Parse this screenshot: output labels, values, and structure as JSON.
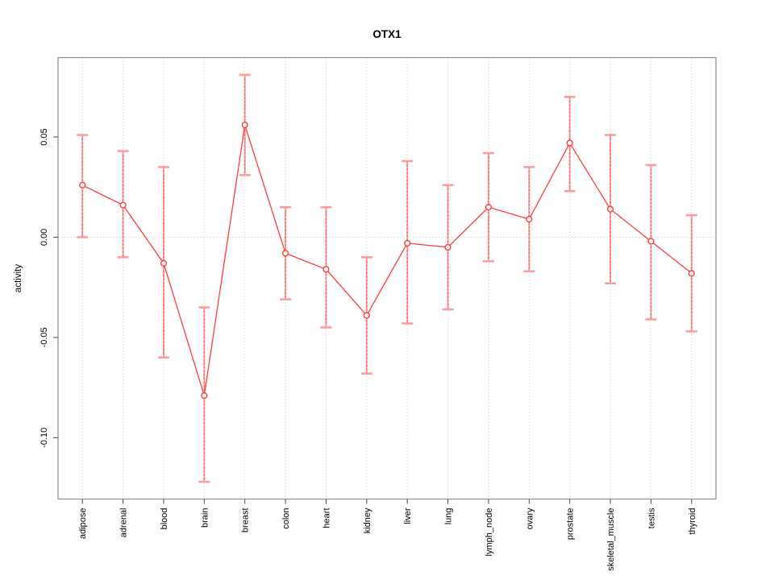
{
  "chart_data": {
    "type": "line",
    "title": "OTX1",
    "xlabel": "",
    "ylabel": "activity",
    "legend": "none",
    "grid": {
      "vertical": "per-category-dotted",
      "horizontal_at": 0.0
    },
    "marker": "open-circle",
    "categories": [
      "adipose",
      "adrenal",
      "blood",
      "brain",
      "breast",
      "colon",
      "heart",
      "kidney",
      "liver",
      "lung",
      "lymph_node",
      "ovary",
      "prostate",
      "skeletal_muscle",
      "testis",
      "thyroid"
    ],
    "series": [
      {
        "name": "activity",
        "values": [
          0.026,
          0.016,
          -0.013,
          -0.079,
          0.056,
          -0.008,
          -0.016,
          -0.039,
          -0.003,
          -0.005,
          0.015,
          0.009,
          0.047,
          0.014,
          -0.002,
          -0.018
        ],
        "error_upper": [
          0.051,
          0.043,
          0.035,
          -0.035,
          0.081,
          0.015,
          0.015,
          -0.01,
          0.038,
          0.026,
          0.042,
          0.035,
          0.07,
          0.051,
          0.036,
          0.011
        ],
        "error_lower": [
          0.0,
          -0.01,
          -0.06,
          -0.122,
          0.031,
          -0.031,
          -0.045,
          -0.068,
          -0.043,
          -0.036,
          -0.012,
          -0.017,
          0.023,
          -0.023,
          -0.041,
          -0.047
        ]
      }
    ],
    "yticks": [
      0.05,
      0.0,
      -0.05,
      -0.1
    ],
    "ytick_labels": [
      "0.05",
      "0.00",
      "-0.05",
      "-0.10"
    ],
    "ylim": [
      -0.1306,
      0.0896
    ],
    "xlim": [
      0.4,
      16.6
    ],
    "colors": {
      "point_line": "#ff3d3d",
      "error_bar": "#ff9d9d",
      "error_bar_dash": "#f25252",
      "grid": "#d9d9d9",
      "box": "#8f8f8f",
      "tick": "#4d4d4d",
      "text": "#000000",
      "background": "#ffffff"
    }
  }
}
